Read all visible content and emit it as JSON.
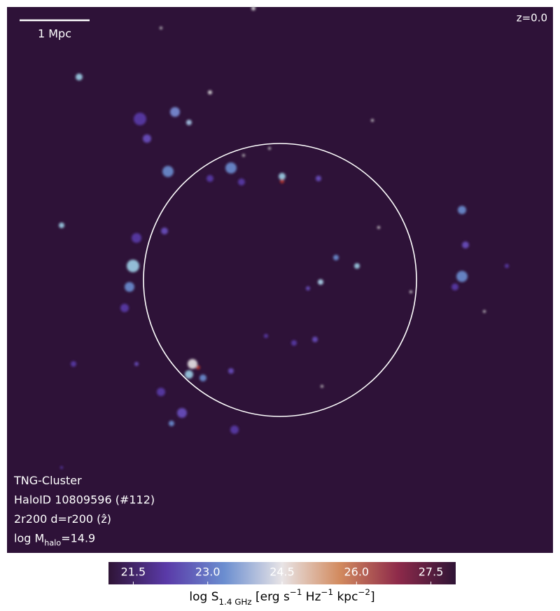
{
  "chart_data": {
    "type": "map",
    "scale_bar": "1 Mpc",
    "redshift": "z=0.0",
    "annotations": [
      [
        {
          "text": "TNG-Cluster"
        }
      ],
      [
        {
          "text": "HaloID 10809596 (#112)"
        }
      ],
      [
        {
          "text": "2r200 d=r200 ("
        },
        {
          "text": "ẑ"
        },
        {
          "text": ")"
        }
      ],
      [
        {
          "text": "log M"
        },
        {
          "text": "halo",
          "shift": "sub"
        },
        {
          "text": "=14.9"
        }
      ]
    ],
    "colorbar": {
      "lim": [
        21.0,
        28.0
      ],
      "ticks": [
        21.5,
        {
          "value": 23,
          "label": "23.0"
        },
        24.5,
        {
          "value": 26,
          "label": "26.0"
        },
        27.5
      ],
      "colormap": [
        "#2f1436",
        "#5a3aa8",
        "#6b8ed0",
        "#e8e4e6",
        "#d28a5e",
        "#8e2a4a",
        "#2f1436"
      ],
      "label": [
        {
          "text": "log S"
        },
        {
          "text": "1.4 GHz",
          "shift": "sub"
        },
        {
          "text": " [erg s"
        },
        {
          "text": "−1",
          "shift": "sup"
        },
        {
          "text": " Hz"
        },
        {
          "text": "−1",
          "shift": "sup"
        },
        {
          "text": " kpc"
        },
        {
          "text": "−2",
          "shift": "sup"
        },
        {
          "text": "]"
        }
      ]
    }
  }
}
